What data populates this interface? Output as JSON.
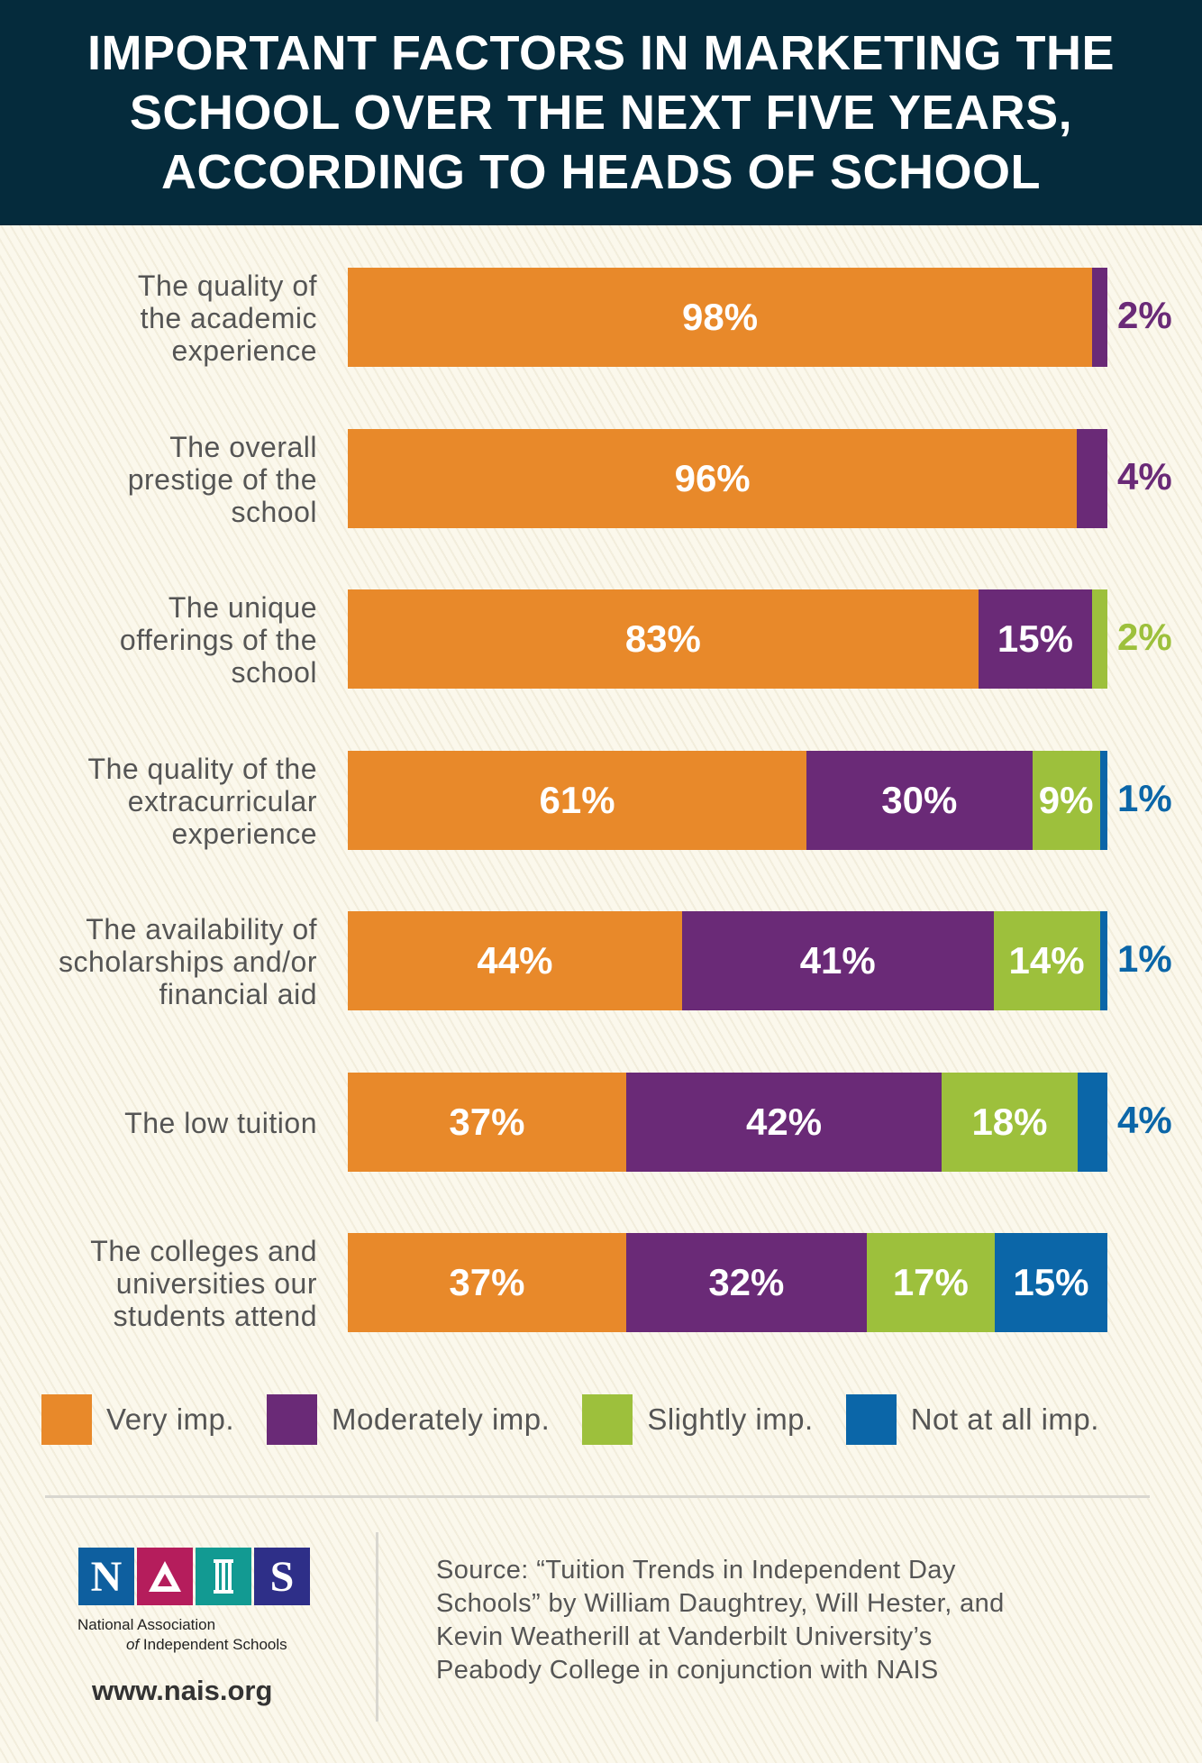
{
  "header": {
    "title_lines": [
      "IMPORTANT FACTORS IN MARKETING THE",
      "SCHOOL OVER THE NEXT FIVE YEARS,",
      "ACCORDING TO HEADS OF SCHOOL"
    ]
  },
  "chart_data": {
    "type": "bar",
    "orientation": "horizontal",
    "stacked": true,
    "title": "IMPORTANT FACTORS IN MARKETING THE SCHOOL OVER THE NEXT FIVE YEARS, ACCORDING TO HEADS OF SCHOOL",
    "categories": [
      [
        "The quality of",
        "the academic",
        "experience"
      ],
      [
        "The overall",
        "prestige of the",
        "school"
      ],
      [
        "The unique",
        "offerings of the",
        "school"
      ],
      [
        "The quality of the",
        "extracurricular",
        "experience"
      ],
      [
        "The availability of",
        "scholarships and/or",
        "financial aid"
      ],
      [
        "The low tuition"
      ],
      [
        "The colleges and",
        "universities our",
        "students attend"
      ]
    ],
    "series": [
      {
        "name": "Very imp.",
        "color": "#e8892a",
        "values": [
          98,
          96,
          83,
          61,
          44,
          37,
          37
        ]
      },
      {
        "name": "Moderately imp.",
        "color": "#6a2a77",
        "values": [
          2,
          4,
          15,
          30,
          41,
          42,
          32
        ]
      },
      {
        "name": "Slightly imp.",
        "color": "#9dc03c",
        "values": [
          null,
          null,
          2,
          9,
          14,
          18,
          17
        ]
      },
      {
        "name": "Not at all imp.",
        "color": "#0b66a8",
        "values": [
          null,
          null,
          null,
          1,
          1,
          4,
          15
        ]
      }
    ],
    "value_format": "{v}%",
    "legend": "bottom",
    "grid": false
  },
  "footer": {
    "logo_letters": [
      "N",
      "A",
      "I",
      "S"
    ],
    "logo_colors": [
      "#0e5f9f",
      "#b51d5c",
      "#129a92",
      "#2e2f88"
    ],
    "org_name_line1": "National Association",
    "org_name_of": "of",
    "org_name_line2": "Independent Schools",
    "url": "www.nais.org",
    "source_lines": [
      "Source: “Tuition Trends in Independent Day",
      "Schools” by William Daughtrey, Will Hester, and",
      "Kevin Weatherill at Vanderbilt University’s",
      "Peabody College in conjunction with NAIS"
    ]
  }
}
